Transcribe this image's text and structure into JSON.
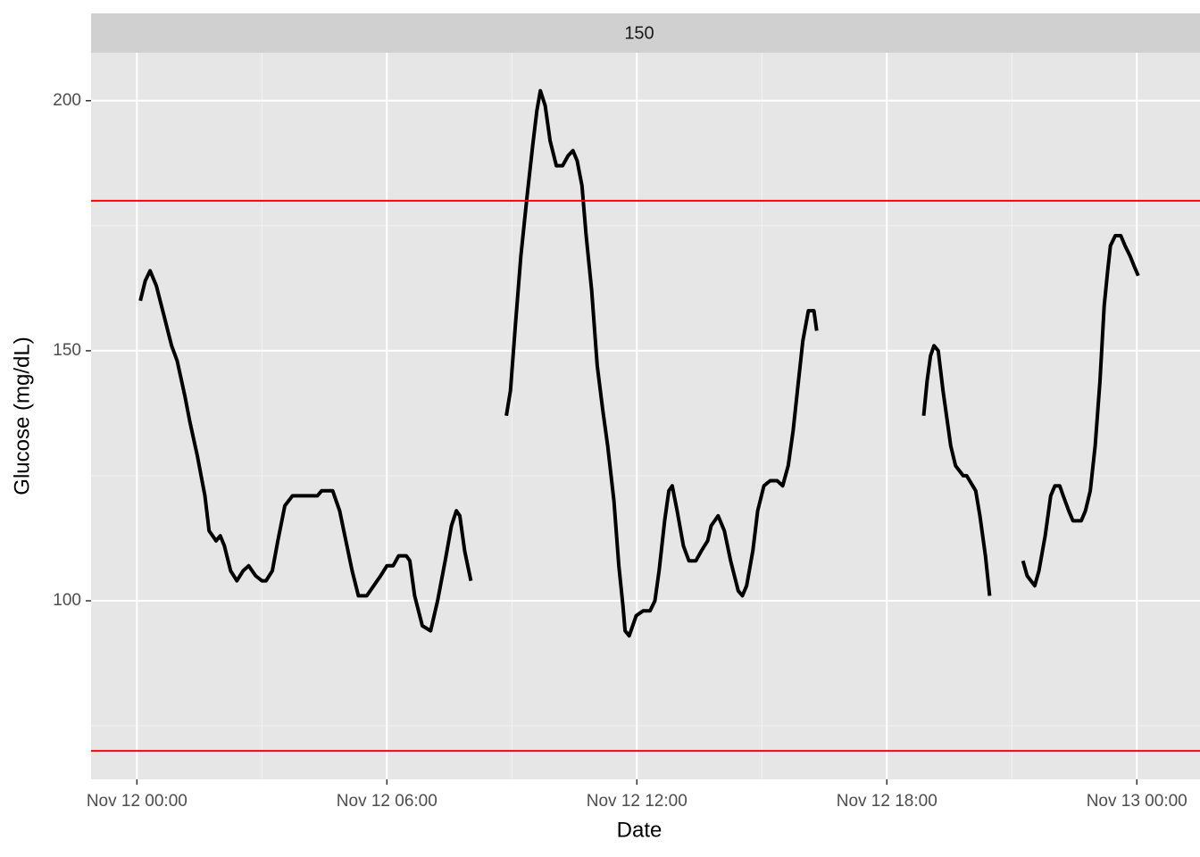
{
  "chart_data": {
    "type": "line",
    "facet": "150",
    "xlabel": "Date",
    "ylabel": "Glucose (mg/dL)",
    "x": [
      "Nov 12 00:05",
      "Nov 12 00:12",
      "Nov 12 00:19",
      "Nov 12 00:28",
      "Nov 12 00:39",
      "Nov 12 00:50",
      "Nov 12 00:58",
      "Nov 12 01:09",
      "Nov 12 01:16",
      "Nov 12 01:27",
      "Nov 12 01:38",
      "Nov 12 01:44",
      "Nov 12 01:54",
      "Nov 12 02:00",
      "Nov 12 02:06",
      "Nov 12 02:15",
      "Nov 12 02:24",
      "Nov 12 02:33",
      "Nov 12 02:41",
      "Nov 12 02:51",
      "Nov 12 03:00",
      "Nov 12 03:06",
      "Nov 12 03:15",
      "Nov 12 03:23",
      "Nov 12 03:33",
      "Nov 12 03:44",
      "Nov 12 04:00",
      "Nov 12 04:20",
      "Nov 12 04:26",
      "Nov 12 04:42",
      "Nov 12 04:52",
      "Nov 12 05:01",
      "Nov 12 05:10",
      "Nov 12 05:19",
      "Nov 12 05:31",
      "Nov 12 05:41",
      "Nov 12 05:51",
      "Nov 12 06:00",
      "Nov 12 06:09",
      "Nov 12 06:17",
      "Nov 12 06:28",
      "Nov 12 06:33",
      "Nov 12 06:40",
      "Nov 12 06:51",
      "Nov 12 07:03",
      "Nov 12 07:13",
      "Nov 12 07:24",
      "Nov 12 07:33",
      "Nov 12 07:40",
      "Nov 12 07:45",
      "Nov 12 07:52",
      "Nov 12 08:01",
      "Nov 12 08:26",
      "Nov 12 08:52",
      "Nov 12 08:58",
      "Nov 12 09:05",
      "Nov 12 09:13",
      "Nov 12 09:22",
      "Nov 12 09:30",
      "Nov 12 09:36",
      "Nov 12 09:41",
      "Nov 12 09:48",
      "Nov 12 09:55",
      "Nov 12 10:04",
      "Nov 12 10:13",
      "Nov 12 10:21",
      "Nov 12 10:28",
      "Nov 12 10:34",
      "Nov 12 10:41",
      "Nov 12 10:47",
      "Nov 12 10:55",
      "Nov 12 11:03",
      "Nov 12 11:11",
      "Nov 12 11:18",
      "Nov 12 11:27",
      "Nov 12 11:34",
      "Nov 12 11:40",
      "Nov 12 11:43",
      "Nov 12 11:49",
      "Nov 12 11:54",
      "Nov 12 11:59",
      "Nov 12 12:09",
      "Nov 12 12:19",
      "Nov 12 12:26",
      "Nov 12 12:32",
      "Nov 12 12:40",
      "Nov 12 12:46",
      "Nov 12 12:51",
      "Nov 12 12:58",
      "Nov 12 13:07",
      "Nov 12 13:15",
      "Nov 12 13:25",
      "Nov 12 13:33",
      "Nov 12 13:42",
      "Nov 12 13:47",
      "Nov 12 13:57",
      "Nov 12 14:06",
      "Nov 12 14:15",
      "Nov 12 14:26",
      "Nov 12 14:32",
      "Nov 12 14:38",
      "Nov 12 14:47",
      "Nov 12 14:54",
      "Nov 12 15:03",
      "Nov 12 15:12",
      "Nov 12 15:22",
      "Nov 12 15:30",
      "Nov 12 15:38",
      "Nov 12 15:45",
      "Nov 12 15:52",
      "Nov 12 15:59",
      "Nov 12 16:07",
      "Nov 12 16:15",
      "Nov 12 16:19",
      "Nov 12 17:36",
      "Nov 12 18:53",
      "Nov 12 18:58",
      "Nov 12 19:03",
      "Nov 12 19:08",
      "Nov 12 19:14",
      "Nov 12 19:21",
      "Nov 12 19:32",
      "Nov 12 19:39",
      "Nov 12 19:50",
      "Nov 12 19:55",
      "Nov 12 20:08",
      "Nov 12 20:14",
      "Nov 12 20:22",
      "Nov 12 20:28",
      "Nov 12 20:52",
      "Nov 12 21:16",
      "Nov 12 21:22",
      "Nov 12 21:33",
      "Nov 12 21:39",
      "Nov 12 21:48",
      "Nov 12 21:56",
      "Nov 12 22:02",
      "Nov 12 22:09",
      "Nov 12 22:14",
      "Nov 12 22:22",
      "Nov 12 22:28",
      "Nov 12 22:40",
      "Nov 12 22:46",
      "Nov 12 22:53",
      "Nov 12 23:00",
      "Nov 12 23:07",
      "Nov 12 23:13",
      "Nov 12 23:18",
      "Nov 12 23:22",
      "Nov 12 23:29",
      "Nov 12 23:37",
      "Nov 12 23:43",
      "Nov 12 23:50",
      "Nov 12 23:56",
      "Nov 13 00:02"
    ],
    "series": [
      {
        "name": "Glucose",
        "color": "#000000",
        "values": [
          160,
          164,
          166,
          163,
          157,
          151,
          148,
          141,
          136,
          129,
          121,
          114,
          112,
          113,
          111,
          106,
          104,
          106,
          107,
          105,
          104,
          104,
          106,
          112,
          119,
          121,
          121,
          121,
          122,
          122,
          118,
          112,
          106,
          101,
          101,
          103,
          105,
          107,
          107,
          109,
          109,
          108,
          101,
          95,
          94,
          100,
          108,
          115,
          118,
          117,
          110,
          104,
          null,
          137,
          142,
          155,
          169,
          181,
          191,
          198,
          202,
          199,
          192,
          187,
          187,
          189,
          190,
          188,
          183,
          173,
          162,
          147,
          138,
          131,
          120,
          107,
          99,
          94,
          93,
          95,
          97,
          98,
          98,
          100,
          106,
          116,
          122,
          123,
          118,
          111,
          108,
          108,
          110,
          112,
          115,
          117,
          114,
          108,
          102,
          101,
          103,
          110,
          118,
          123,
          124,
          124,
          123,
          127,
          134,
          143,
          152,
          158,
          158,
          154,
          null,
          137,
          144,
          149,
          151,
          150,
          142,
          131,
          127,
          125,
          125,
          122,
          117,
          109,
          101,
          null,
          108,
          105,
          103,
          106,
          113,
          121,
          123,
          123,
          121,
          118,
          116,
          116,
          118,
          122,
          131,
          144,
          159,
          166,
          171,
          173,
          173,
          171,
          169,
          167,
          165
        ]
      }
    ],
    "hlines": [
      {
        "value": 180,
        "color": "#ff0000"
      },
      {
        "value": 70,
        "color": "#ff0000"
      }
    ],
    "xlim": [
      "Nov 11 22:54",
      "Nov 13 01:31"
    ],
    "xticks": [
      "Nov 12 00:00",
      "Nov 12 06:00",
      "Nov 12 12:00",
      "Nov 12 18:00",
      "Nov 13 00:00"
    ],
    "xminor": [
      "Nov 12 03:00",
      "Nov 12 09:00",
      "Nov 12 15:00",
      "Nov 12 21:00"
    ],
    "ylim": [
      64.3,
      209.6
    ],
    "yticks": [
      100,
      150,
      200
    ],
    "yminor": [
      75,
      125,
      175
    ],
    "grid": true
  }
}
